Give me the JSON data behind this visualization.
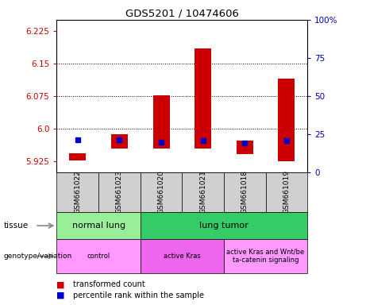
{
  "title": "GDS5201 / 10474606",
  "samples": [
    "GSM661022",
    "GSM661023",
    "GSM661020",
    "GSM661021",
    "GSM661018",
    "GSM661019"
  ],
  "red_bottom": [
    5.928,
    5.955,
    5.955,
    5.955,
    5.942,
    5.925
  ],
  "red_top": [
    5.943,
    5.988,
    6.076,
    6.185,
    5.972,
    6.115
  ],
  "blue_y": [
    5.974,
    5.974,
    5.97,
    5.972,
    5.968,
    5.972
  ],
  "ylim_left": [
    5.9,
    6.25
  ],
  "yticks_left": [
    5.925,
    6.0,
    6.075,
    6.15,
    6.225
  ],
  "ylim_right": [
    0,
    100
  ],
  "yticks_right": [
    0,
    25,
    50,
    75,
    100
  ],
  "ytick_labels_right": [
    "0",
    "25",
    "50",
    "75",
    "100%"
  ],
  "hlines": [
    6.0,
    6.075,
    6.15
  ],
  "tissue_labels": [
    [
      "normal lung",
      0,
      2
    ],
    [
      "lung tumor",
      2,
      6
    ]
  ],
  "tissue_colors": [
    "#99EE99",
    "#33CC66"
  ],
  "genotype_labels": [
    [
      "control",
      0,
      2
    ],
    [
      "active Kras",
      2,
      4
    ],
    [
      "active Kras and Wnt/be\nta-catenin signaling",
      4,
      6
    ]
  ],
  "genotype_colors": [
    "#FF99FF",
    "#EE66EE",
    "#FF99FF"
  ],
  "bar_color": "#CC0000",
  "blue_color": "#0000CC",
  "label_color_left": "#CC0000",
  "label_color_right": "#0000BB",
  "legend_red": "transformed count",
  "legend_blue": "percentile rank within the sample",
  "tissue_row_label": "tissue",
  "genotype_row_label": "genotype/variation"
}
